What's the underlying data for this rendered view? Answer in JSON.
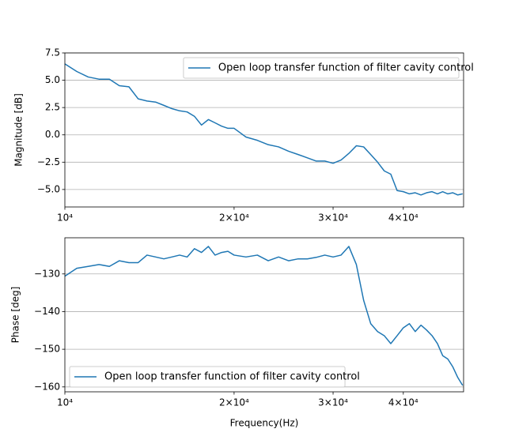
{
  "chart_data": [
    {
      "type": "line",
      "ylabel": "Magnitude [dB]",
      "xscale": "log",
      "grid": "y",
      "legend": "upper right",
      "xlim": [
        10000,
        51200
      ],
      "ylim": [
        -6.6,
        7.5
      ],
      "xticks": [
        {
          "value": 10000,
          "label": "10⁴"
        },
        {
          "value": 20000,
          "label": "2×10⁴"
        },
        {
          "value": 30000,
          "label": "3×10⁴"
        },
        {
          "value": 40000,
          "label": "4×10⁴"
        }
      ],
      "yticks": [
        {
          "value": -5,
          "label": "−5.0"
        },
        {
          "value": -2.5,
          "label": "−2.5"
        },
        {
          "value": 0,
          "label": "0.0"
        },
        {
          "value": 2.5,
          "label": "2.5"
        },
        {
          "value": 5,
          "label": "5.0"
        },
        {
          "value": 7.5,
          "label": "7.5"
        }
      ],
      "x": [
        10000,
        10500,
        11000,
        11500,
        12000,
        12500,
        13000,
        13500,
        14000,
        14500,
        15000,
        15500,
        16000,
        16500,
        17000,
        17500,
        18000,
        18500,
        19000,
        19500,
        20000,
        21000,
        22000,
        23000,
        24000,
        25000,
        26000,
        27000,
        28000,
        29000,
        30000,
        31000,
        32000,
        33000,
        34000,
        35000,
        36000,
        37000,
        38000,
        39000,
        40000,
        41000,
        42000,
        43000,
        44000,
        45000,
        46000,
        47000,
        48000,
        49000,
        50000,
        51000
      ],
      "series": [
        {
          "name": "Open loop transfer function of filter cavity control",
          "color": "#1f77b4",
          "values": [
            6.5,
            5.8,
            5.3,
            5.1,
            5.1,
            4.5,
            4.4,
            3.3,
            3.1,
            3.0,
            2.7,
            2.4,
            2.2,
            2.1,
            1.7,
            0.9,
            1.4,
            1.1,
            0.8,
            0.6,
            0.6,
            -0.2,
            -0.5,
            -0.9,
            -1.1,
            -1.5,
            -1.8,
            -2.1,
            -2.4,
            -2.4,
            -2.6,
            -2.3,
            -1.7,
            -1.0,
            -1.1,
            -1.8,
            -2.5,
            -3.3,
            -3.6,
            -5.1,
            -5.2,
            -5.4,
            -5.3,
            -5.5,
            -5.3,
            -5.2,
            -5.4,
            -5.2,
            -5.4,
            -5.3,
            -5.5,
            -5.4
          ]
        }
      ]
    },
    {
      "type": "line",
      "ylabel": "Phase [deg]",
      "xlabel": "Frequency(Hz)",
      "xscale": "log",
      "grid": "y",
      "legend": "lower left",
      "xlim": [
        10000,
        51200
      ],
      "ylim": [
        -161.3,
        -120.4
      ],
      "xticks": [
        {
          "value": 10000,
          "label": "10⁴"
        },
        {
          "value": 20000,
          "label": "2×10⁴"
        },
        {
          "value": 30000,
          "label": "3×10⁴"
        },
        {
          "value": 40000,
          "label": "4×10⁴"
        }
      ],
      "yticks": [
        {
          "value": -160,
          "label": "−160"
        },
        {
          "value": -150,
          "label": "−150"
        },
        {
          "value": -140,
          "label": "−140"
        },
        {
          "value": -130,
          "label": "−130"
        }
      ],
      "x": [
        10000,
        10500,
        11000,
        11500,
        12000,
        12500,
        13000,
        13500,
        14000,
        14500,
        15000,
        15500,
        16000,
        16500,
        17000,
        17500,
        18000,
        18500,
        19000,
        19500,
        20000,
        21000,
        22000,
        23000,
        24000,
        25000,
        26000,
        27000,
        28000,
        29000,
        30000,
        31000,
        32000,
        33000,
        34000,
        35000,
        36000,
        37000,
        38000,
        39000,
        40000,
        41000,
        42000,
        43000,
        44000,
        45000,
        46000,
        47000,
        48000,
        49000,
        50000,
        51000
      ],
      "series": [
        {
          "name": "Open loop transfer function of filter cavity control",
          "color": "#1f77b4",
          "values": [
            -130.6,
            -128.5,
            -128,
            -127.5,
            -128,
            -126.5,
            -127,
            -127,
            -125,
            -125.5,
            -126,
            -125.5,
            -125,
            -125.5,
            -123.3,
            -124.3,
            -122.7,
            -125,
            -124.3,
            -124,
            -125,
            -125.5,
            -125,
            -126.5,
            -125.5,
            -126.5,
            -126,
            -126,
            -125.6,
            -125,
            -125.5,
            -125,
            -122.7,
            -127.5,
            -137,
            -143.2,
            -145.3,
            -146.4,
            -148.5,
            -146.4,
            -144.3,
            -143.2,
            -145.3,
            -143.6,
            -144.9,
            -146.4,
            -148.5,
            -151.7,
            -152.6,
            -154.7,
            -157.5,
            -159.6
          ]
        }
      ]
    }
  ]
}
